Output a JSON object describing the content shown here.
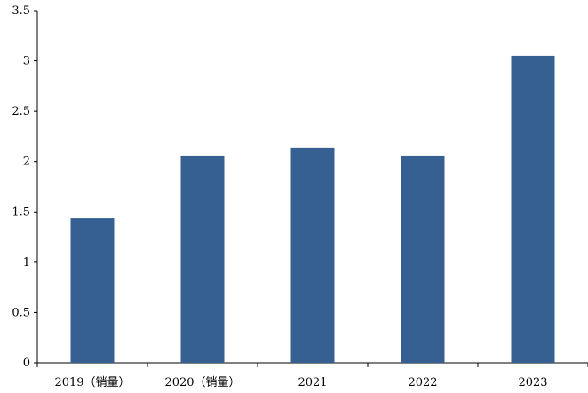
{
  "chart_data": {
    "type": "bar",
    "title": "",
    "xlabel": "",
    "ylabel": "",
    "categories": [
      "2019（销量）",
      "2020（销量）",
      "2021",
      "2022",
      "2023"
    ],
    "values": [
      1.44,
      2.06,
      2.14,
      2.06,
      3.05
    ],
    "ylim": [
      0,
      3.5
    ],
    "yticks": [
      "0",
      "0.5",
      "1",
      "1.5",
      "2",
      "2.5",
      "3",
      "3.5"
    ],
    "grid": false,
    "legend": "none",
    "bar_color": "#376092"
  }
}
